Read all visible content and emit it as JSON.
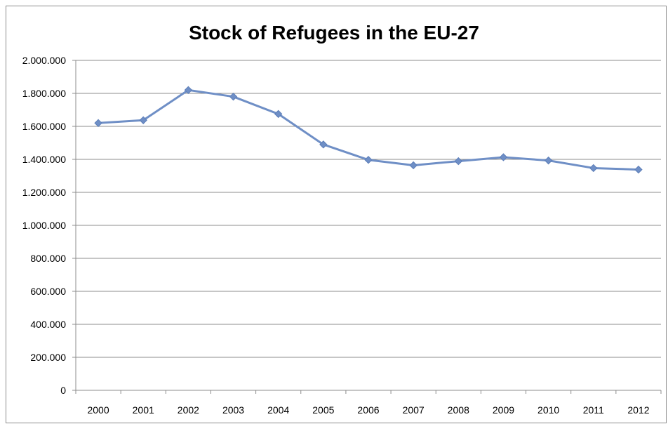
{
  "chart_data": {
    "type": "line",
    "title": "Stock of Refugees in the EU-27",
    "xlabel": "",
    "ylabel": "",
    "ylim": [
      0,
      2000000
    ],
    "y_ticks": [
      0,
      200000,
      400000,
      600000,
      800000,
      1000000,
      1200000,
      1400000,
      1600000,
      1800000,
      2000000
    ],
    "y_tick_labels": [
      "0",
      "200.000",
      "400.000",
      "600.000",
      "800.000",
      "1.000.000",
      "1.200.000",
      "1.400.000",
      "1.600.000",
      "1.800.000",
      "2.000.000"
    ],
    "categories": [
      "2000",
      "2001",
      "2002",
      "2003",
      "2004",
      "2005",
      "2006",
      "2007",
      "2008",
      "2009",
      "2010",
      "2011",
      "2012"
    ],
    "series": [
      {
        "values": [
          1620000,
          1637000,
          1820000,
          1780000,
          1675000,
          1490000,
          1397000,
          1364000,
          1389000,
          1413000,
          1393000,
          1347000,
          1338000
        ],
        "color": "#6f8fc6",
        "marker": "diamond"
      }
    ],
    "grid": true,
    "legend": "none"
  }
}
